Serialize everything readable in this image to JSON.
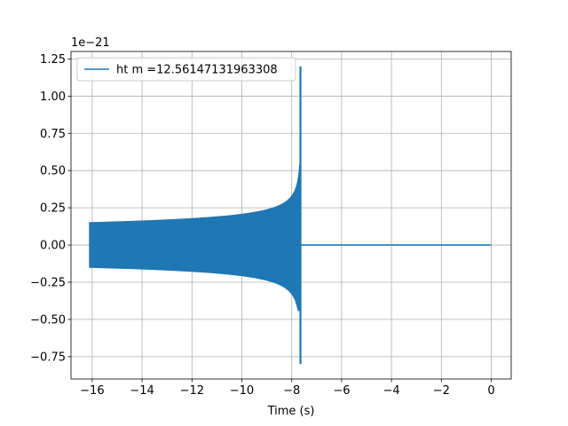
{
  "chart_data": {
    "type": "line",
    "title": "",
    "xlabel": "Time (s)",
    "ylabel": "",
    "offset_text": "1e−21",
    "xlim": [
      -16.85,
      0.8
    ],
    "ylim": [
      -0.9,
      1.3
    ],
    "xticks": [
      -16,
      -14,
      -12,
      -10,
      -8,
      -6,
      -4,
      -2,
      0
    ],
    "xtick_labels": [
      "−16",
      "−14",
      "−12",
      "−10",
      "−8",
      "−6",
      "−4",
      "−2",
      "0"
    ],
    "yticks": [
      -0.75,
      -0.5,
      -0.25,
      0.0,
      0.25,
      0.5,
      0.75,
      1.0,
      1.25
    ],
    "ytick_labels": [
      "−0.75",
      "−0.50",
      "−0.25",
      "0.00",
      "0.25",
      "0.50",
      "0.75",
      "1.00",
      "1.25"
    ],
    "grid": true,
    "legend_position": "upper-left",
    "series": [
      {
        "name": "ht m =12.56147131963308",
        "color": "#1f77b4",
        "t_start": -16.1,
        "t_merger": -7.65,
        "t_end": 0.0,
        "envelope_start_upper": 0.15,
        "envelope_start_lower": -0.15,
        "peak_max": 1.2,
        "peak_min": -0.8
      }
    ]
  }
}
